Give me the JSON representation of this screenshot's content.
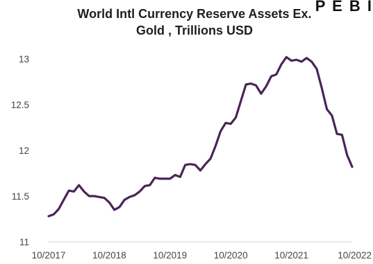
{
  "corner_mark": "P E B I",
  "chart_data": {
    "type": "line",
    "title_lines": [
      "World Intl Currency Reserve Assets Ex.",
      "Gold , Trillions USD"
    ],
    "xlabel": "",
    "ylabel": "",
    "xlim": [
      "2017-10",
      "2022-10"
    ],
    "ylim": [
      11,
      13
    ],
    "yticks": [
      11,
      11.5,
      12,
      12.5,
      13
    ],
    "ytick_labels": [
      "11",
      "11.5",
      "12",
      "12.5",
      "13"
    ],
    "xticks": [
      "2017-10",
      "2018-10",
      "2019-10",
      "2020-10",
      "2021-10",
      "2022-10"
    ],
    "xtick_labels": [
      "10/2017",
      "10/2018",
      "10/2019",
      "10/2020",
      "10/2021",
      "10/2022"
    ],
    "grid": false,
    "legend": "none",
    "line_color": "#4a2458",
    "series": [
      {
        "x": [
          "2017-10",
          "2017-11",
          "2017-12",
          "2018-01",
          "2018-02",
          "2018-03",
          "2018-04",
          "2018-05",
          "2018-06",
          "2018-07",
          "2018-08",
          "2018-09",
          "2018-10",
          "2018-11",
          "2018-12",
          "2019-01",
          "2019-02",
          "2019-03",
          "2019-04",
          "2019-05",
          "2019-06",
          "2019-07",
          "2019-08",
          "2019-09",
          "2019-10",
          "2019-11",
          "2019-12",
          "2020-01",
          "2020-02",
          "2020-03",
          "2020-04",
          "2020-05",
          "2020-06",
          "2020-07",
          "2020-08",
          "2020-09",
          "2020-10",
          "2020-11",
          "2020-12",
          "2021-01",
          "2021-02",
          "2021-03",
          "2021-04",
          "2021-05",
          "2021-06",
          "2021-07",
          "2021-08",
          "2021-09",
          "2021-10",
          "2021-11",
          "2021-12",
          "2022-01",
          "2022-02",
          "2022-03",
          "2022-04",
          "2022-05",
          "2022-06",
          "2022-07",
          "2022-08",
          "2022-09",
          "2022-10"
        ],
        "values": [
          11.28,
          11.3,
          11.36,
          11.46,
          11.56,
          11.55,
          11.62,
          11.55,
          11.5,
          11.5,
          11.49,
          11.48,
          11.43,
          11.35,
          11.38,
          11.46,
          11.49,
          11.51,
          11.55,
          11.61,
          11.62,
          11.7,
          11.69,
          11.69,
          11.69,
          11.73,
          11.71,
          11.84,
          11.85,
          11.84,
          11.78,
          11.85,
          11.91,
          12.05,
          12.21,
          12.3,
          12.29,
          12.36,
          12.54,
          12.72,
          12.73,
          12.71,
          12.62,
          12.7,
          12.81,
          12.83,
          12.94,
          13.02,
          12.98,
          12.99,
          12.97,
          13.01,
          12.97,
          12.89,
          12.68,
          12.45,
          12.38,
          12.18,
          12.17,
          11.95,
          11.82
        ]
      }
    ]
  }
}
